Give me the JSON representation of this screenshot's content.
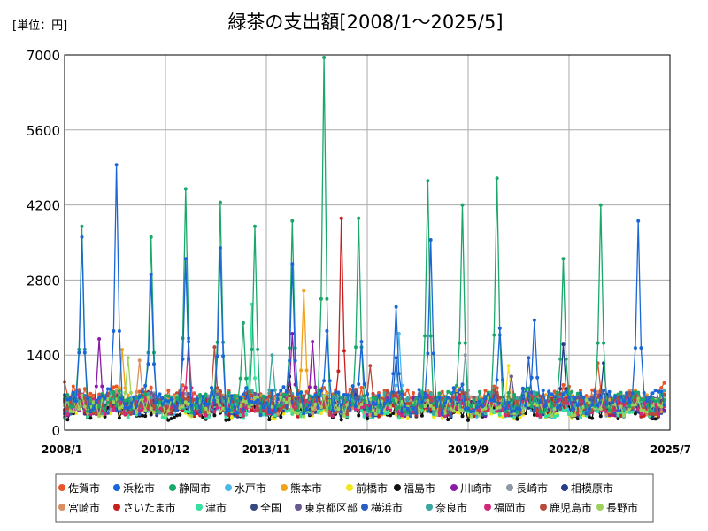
{
  "chart_data": {
    "type": "line",
    "title": "緑茶の支出額[2008/1～2025/5]",
    "unit": "[単位：円]",
    "ylim": [
      0,
      7000
    ],
    "yticks": [
      0,
      1400,
      2800,
      4200,
      5600,
      7000
    ],
    "xlim": [
      "2008/1",
      "2025/7"
    ],
    "xticks": [
      "2008/1",
      "2010/12",
      "2013/11",
      "2016/10",
      "2019/9",
      "2022/8",
      "2025/7"
    ],
    "grid": true,
    "legend_position": "bottom",
    "series": [
      {
        "name": "佐賀市",
        "color": "#e8552a",
        "base": 550,
        "amp": 200,
        "peaks": [
          [
            2008.0,
            900
          ],
          [
            2025.4,
            1650
          ],
          [
            2023.4,
            1250
          ]
        ]
      },
      {
        "name": "浜松市",
        "color": "#1a66d6",
        "base": 520,
        "amp": 220,
        "peaks": [
          [
            2008.5,
            3600
          ],
          [
            2009.5,
            4950
          ],
          [
            2010.5,
            2900
          ],
          [
            2011.5,
            3200
          ],
          [
            2012.5,
            3400
          ],
          [
            2014.6,
            3100
          ],
          [
            2015.6,
            1850
          ],
          [
            2016.6,
            1650
          ],
          [
            2017.6,
            2300
          ],
          [
            2018.6,
            3550
          ],
          [
            2020.6,
            1900
          ],
          [
            2021.6,
            2050
          ],
          [
            2024.6,
            3900
          ]
        ]
      },
      {
        "name": "静岡市",
        "color": "#1aa86a",
        "base": 520,
        "amp": 200,
        "peaks": [
          [
            2008.5,
            3800
          ],
          [
            2010.5,
            3600
          ],
          [
            2011.5,
            4500
          ],
          [
            2012.5,
            4250
          ],
          [
            2013.2,
            2000
          ],
          [
            2013.5,
            3800
          ],
          [
            2014.6,
            3900
          ],
          [
            2015.5,
            6950
          ],
          [
            2016.5,
            3950
          ],
          [
            2018.5,
            4650
          ],
          [
            2019.5,
            4200
          ],
          [
            2020.5,
            4700
          ],
          [
            2022.4,
            3200
          ],
          [
            2023.5,
            4200
          ]
        ]
      },
      {
        "name": "水戸市",
        "color": "#49b8ec",
        "base": 420,
        "amp": 180,
        "peaks": [
          [
            2017.7,
            1800
          ]
        ]
      },
      {
        "name": "熊本市",
        "color": "#f2a21a",
        "base": 480,
        "amp": 180,
        "peaks": [
          [
            2014.9,
            2600
          ],
          [
            2009.7,
            1500
          ]
        ]
      },
      {
        "name": "前橋市",
        "color": "#f0e61a",
        "base": 380,
        "amp": 170,
        "peaks": [
          [
            2020.8,
            1200
          ]
        ]
      },
      {
        "name": "福島市",
        "color": "#111111",
        "base": 330,
        "amp": 150,
        "peaks": [
          [
            2014.5,
            1000
          ]
        ]
      },
      {
        "name": "川崎市",
        "color": "#8a1aa8",
        "base": 440,
        "amp": 180,
        "peaks": [
          [
            2009.0,
            1700
          ],
          [
            2015.2,
            1650
          ],
          [
            2014.6,
            1800
          ]
        ]
      },
      {
        "name": "長崎市",
        "color": "#8c98a8",
        "base": 460,
        "amp": 180,
        "peaks": [
          [
            2019.6,
            1400
          ]
        ]
      },
      {
        "name": "相模原市",
        "color": "#283a8a",
        "base": 420,
        "amp": 170,
        "peaks": [
          [
            2022.4,
            1600
          ],
          [
            2023.6,
            1250
          ]
        ]
      },
      {
        "name": "宮崎市",
        "color": "#d89060",
        "base": 460,
        "amp": 180,
        "peaks": [
          [
            2010.2,
            1300
          ]
        ]
      },
      {
        "name": "さいたま市",
        "color": "#c81e1e",
        "base": 420,
        "amp": 170,
        "peaks": [
          [
            2016.0,
            3950
          ],
          [
            2015.9,
            1100
          ]
        ]
      },
      {
        "name": "津市",
        "color": "#38e0a0",
        "base": 380,
        "amp": 160,
        "peaks": [
          [
            2013.4,
            2350
          ]
        ]
      },
      {
        "name": "全国",
        "color": "#364a80",
        "base": 440,
        "amp": 80,
        "peaks": []
      },
      {
        "name": "東京都区部",
        "color": "#6a5890",
        "base": 460,
        "amp": 170,
        "peaks": [
          [
            2020.9,
            1000
          ]
        ]
      },
      {
        "name": "横浜市",
        "color": "#2a5ec0",
        "base": 430,
        "amp": 170,
        "peaks": [
          [
            2017.6,
            1350
          ],
          [
            2021.4,
            1350
          ]
        ]
      },
      {
        "name": "奈良市",
        "color": "#3aa8a0",
        "base": 470,
        "amp": 180,
        "peaks": [
          [
            2014.0,
            1400
          ],
          [
            2025.4,
            1200
          ]
        ]
      },
      {
        "name": "福岡市",
        "color": "#d22a7a",
        "base": 420,
        "amp": 170,
        "peaks": [
          [
            2011.6,
            1650
          ]
        ]
      },
      {
        "name": "鹿児島市",
        "color": "#b84a3a",
        "base": 460,
        "amp": 180,
        "peaks": [
          [
            2012.3,
            1550
          ],
          [
            2016.8,
            1200
          ]
        ]
      },
      {
        "name": "長野市",
        "color": "#9cd25a",
        "base": 420,
        "amp": 170,
        "peaks": [
          [
            2009.8,
            1350
          ]
        ]
      }
    ]
  }
}
